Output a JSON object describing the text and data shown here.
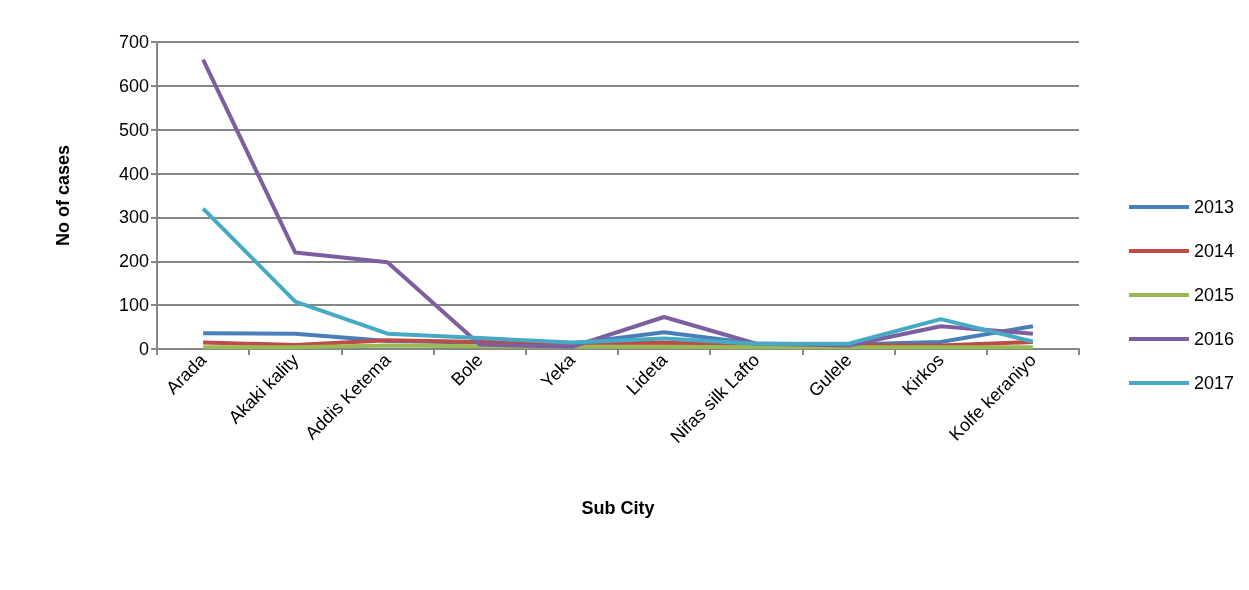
{
  "chart_data": {
    "type": "line",
    "xlabel": "Sub City",
    "ylabel": "No of cases",
    "categories": [
      "Arada",
      "Akaki kality",
      "Addis Ketema",
      "Bole",
      "Yeka",
      "Lideta",
      "Nifas silk Lafto",
      "Gulele",
      "Kirkos",
      "Kolfe keraniyo"
    ],
    "series": [
      {
        "name": "2013",
        "color": "#4a7ebb",
        "values": [
          36,
          35,
          18,
          15,
          12,
          38,
          12,
          10,
          16,
          52
        ]
      },
      {
        "name": "2014",
        "color": "#be4b48",
        "values": [
          15,
          9,
          20,
          16,
          12,
          14,
          10,
          9,
          8,
          16
        ]
      },
      {
        "name": "2015",
        "color": "#98b954",
        "values": [
          4,
          4,
          8,
          6,
          5,
          5,
          4,
          4,
          4,
          4
        ]
      },
      {
        "name": "2016",
        "color": "#7d5fa0",
        "values": [
          660,
          220,
          198,
          10,
          5,
          73,
          12,
          8,
          52,
          35
        ]
      },
      {
        "name": "2017",
        "color": "#46aac5",
        "values": [
          320,
          108,
          35,
          25,
          15,
          24,
          12,
          12,
          68,
          17
        ]
      }
    ],
    "ylim": [
      0,
      700
    ],
    "yticks": [
      0,
      100,
      200,
      300,
      400,
      500,
      600,
      700
    ],
    "grid": "y",
    "legend": "right",
    "marker": "none",
    "line_style": "solid"
  }
}
